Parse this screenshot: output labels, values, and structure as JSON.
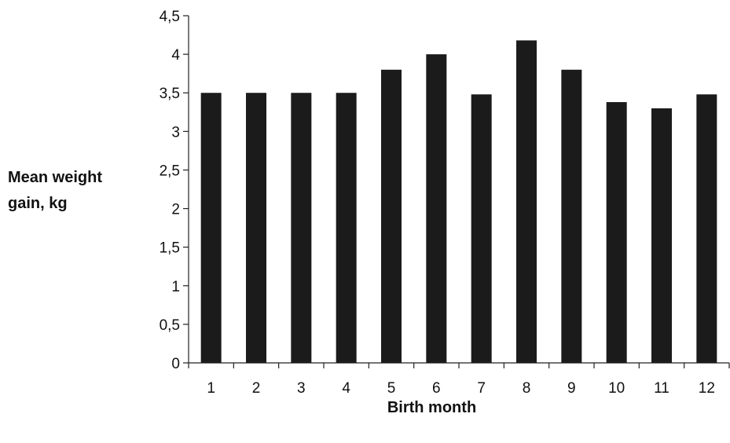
{
  "chart_data": {
    "type": "bar",
    "categories": [
      "1",
      "2",
      "3",
      "4",
      "5",
      "6",
      "7",
      "8",
      "9",
      "10",
      "11",
      "12"
    ],
    "values": [
      3.5,
      3.5,
      3.5,
      3.5,
      3.8,
      4.0,
      3.48,
      4.18,
      3.8,
      3.38,
      3.3,
      3.48
    ],
    "title": "",
    "xlabel": "Birth month",
    "ylabel": "Mean weight\ngain, kg",
    "ylim": [
      0,
      4.5
    ],
    "yticks": [
      "0",
      "0,5",
      "1",
      "1,5",
      "2",
      "2,5",
      "3",
      "3,5",
      "4",
      "4,5"
    ],
    "grid": false,
    "bar_color": "#1b1b1b"
  }
}
